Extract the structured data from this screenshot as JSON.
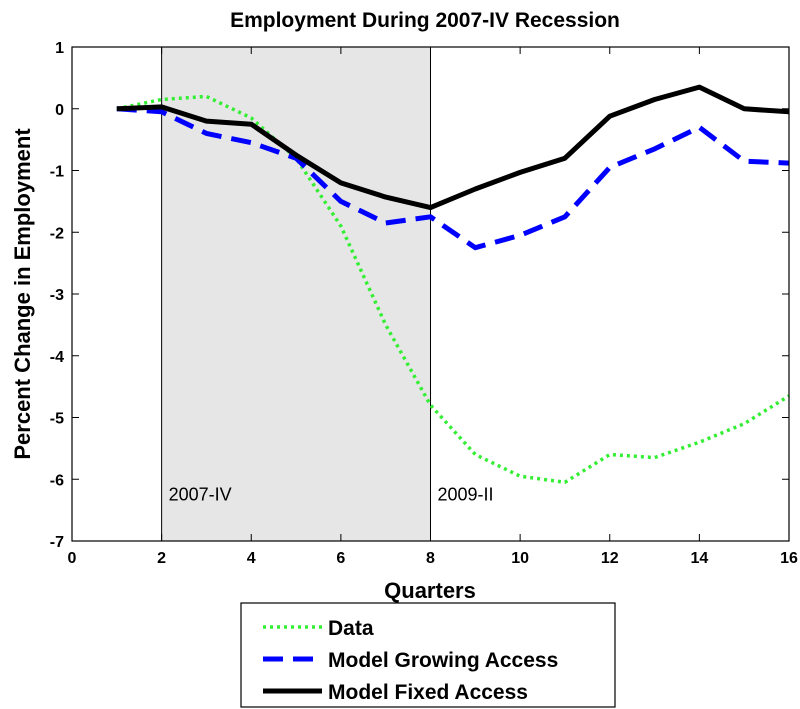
{
  "chart_data": {
    "type": "line",
    "title": "Employment During 2007-IV Recession",
    "xlabel": "Quarters",
    "ylabel": "Percent Change in Employment",
    "xlim": [
      0,
      16
    ],
    "ylim": [
      -7,
      1
    ],
    "xticks": [
      0,
      2,
      4,
      6,
      8,
      10,
      12,
      14,
      16
    ],
    "yticks": [
      -7,
      -6,
      -5,
      -4,
      -3,
      -2,
      -1,
      0,
      1
    ],
    "xtick_labels": [
      "0",
      "2",
      "4",
      "6",
      "8",
      "10",
      "12",
      "14",
      "16"
    ],
    "ytick_labels": [
      "-7",
      "-6",
      "-5",
      "-4",
      "-3",
      "-2",
      "-1",
      "0",
      "1"
    ],
    "grid": false,
    "legend_position": "below",
    "recession_shade": {
      "x_start": 2,
      "x_end": 8,
      "color": "#e6e6e6"
    },
    "annotations": [
      {
        "text": "2007-IV",
        "x": 2,
        "y": -6.25
      },
      {
        "text": "2009-II",
        "x": 8,
        "y": -6.25
      }
    ],
    "series": [
      {
        "name": "Data",
        "color": "#33ee33",
        "style": "dotted",
        "x": [
          1,
          2,
          3,
          4,
          5,
          6,
          7,
          8,
          9,
          10,
          11,
          12,
          13,
          14,
          15,
          16
        ],
        "y": [
          0.0,
          0.15,
          0.2,
          -0.15,
          -0.8,
          -1.9,
          -3.5,
          -4.8,
          -5.6,
          -5.95,
          -6.05,
          -5.6,
          -5.65,
          -5.4,
          -5.1,
          -4.65
        ]
      },
      {
        "name": "Model Growing Access",
        "color": "#0000ff",
        "style": "dashed",
        "x": [
          1,
          2,
          3,
          4,
          5,
          6,
          7,
          8,
          9,
          10,
          11,
          12,
          13,
          14,
          15,
          16
        ],
        "y": [
          0.0,
          -0.05,
          -0.4,
          -0.55,
          -0.8,
          -1.5,
          -1.85,
          -1.75,
          -2.25,
          -2.05,
          -1.75,
          -0.95,
          -0.65,
          -0.3,
          -0.85,
          -0.88
        ]
      },
      {
        "name": "Model Fixed Access",
        "color": "#000000",
        "style": "solid",
        "x": [
          1,
          2,
          3,
          4,
          5,
          6,
          7,
          8,
          9,
          10,
          11,
          12,
          13,
          14,
          15,
          16
        ],
        "y": [
          0.0,
          0.03,
          -0.2,
          -0.25,
          -0.75,
          -1.2,
          -1.43,
          -1.6,
          -1.3,
          -1.03,
          -0.8,
          -0.12,
          0.15,
          0.35,
          0.0,
          -0.05
        ]
      }
    ]
  }
}
